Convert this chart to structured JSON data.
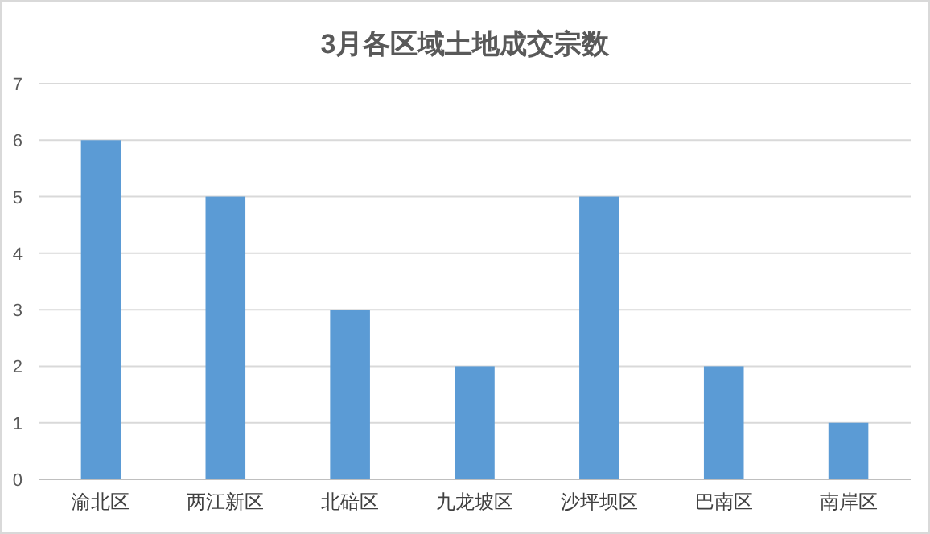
{
  "chart_data": {
    "type": "bar",
    "title": "3月各区域土地成交宗数",
    "categories": [
      "渝北区",
      "两江新区",
      "北碚区",
      "九龙坡区",
      "沙坪坝区",
      "巴南区",
      "南岸区"
    ],
    "values": [
      6,
      5,
      3,
      2,
      5,
      2,
      1
    ],
    "color": "#5b9bd5",
    "ylim": [
      0,
      7
    ],
    "yticks": [
      0,
      1,
      2,
      3,
      4,
      5,
      6,
      7
    ],
    "grid": "y"
  }
}
